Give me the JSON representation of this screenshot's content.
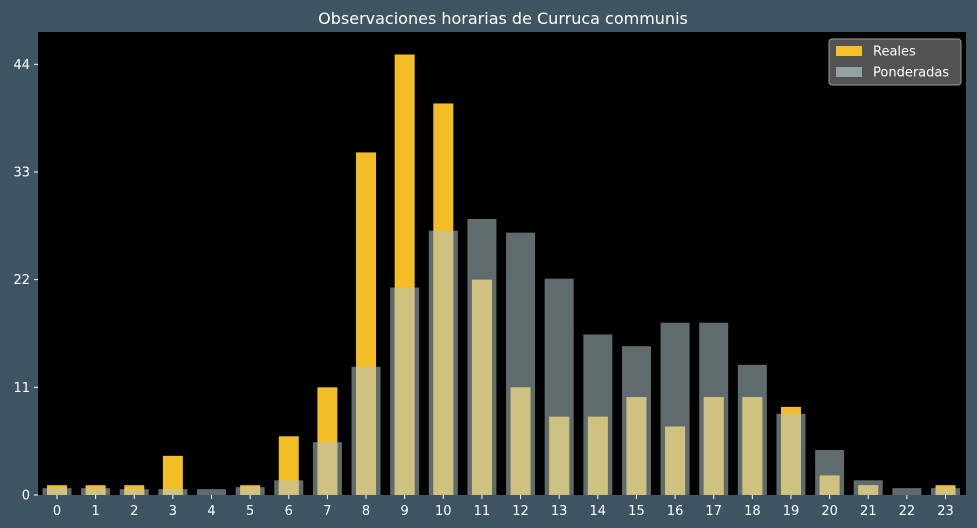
{
  "chart_data": {
    "type": "bar",
    "title": "Observaciones horarias de Curruca communis",
    "xlabel": "",
    "ylabel": "",
    "categories": [
      "0",
      "1",
      "2",
      "3",
      "4",
      "5",
      "6",
      "7",
      "8",
      "9",
      "10",
      "11",
      "12",
      "13",
      "14",
      "15",
      "16",
      "17",
      "18",
      "19",
      "20",
      "21",
      "22",
      "23"
    ],
    "ylim": [
      0,
      47.3
    ],
    "yticks": [
      "0",
      "11",
      "22",
      "33",
      "44"
    ],
    "grid": false,
    "legend_position": "top-right",
    "series": [
      {
        "name": "Reales",
        "color": "#ffc727",
        "values": [
          1,
          1,
          1,
          4,
          0,
          1,
          6,
          11,
          35,
          45,
          40,
          22,
          11,
          8,
          8,
          10,
          7,
          10,
          10,
          9,
          2,
          1,
          0,
          1
        ]
      },
      {
        "name": "Ponderadas",
        "color": "#afc3c8",
        "values": [
          0.7,
          0.7,
          0.6,
          0.6,
          0.6,
          0.8,
          1.5,
          5.4,
          13.1,
          21.2,
          27.0,
          28.2,
          26.8,
          22.1,
          16.4,
          15.2,
          17.6,
          17.6,
          13.3,
          8.3,
          4.6,
          1.5,
          0.7,
          0.7
        ]
      }
    ]
  }
}
